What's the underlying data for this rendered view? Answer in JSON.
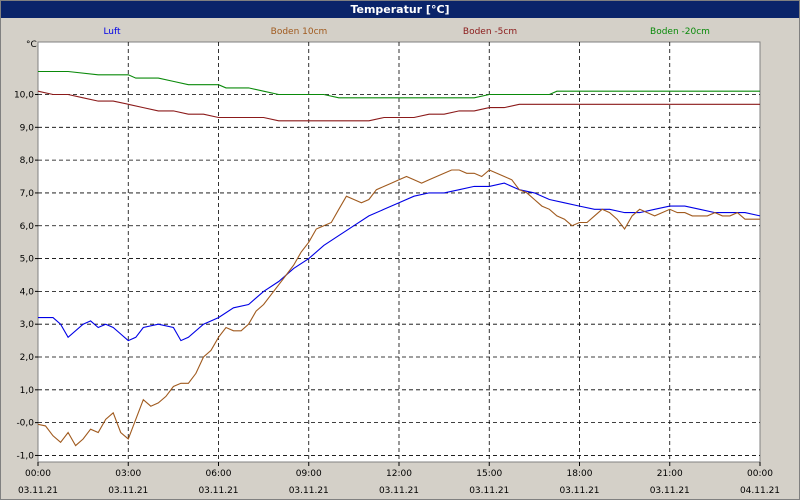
{
  "window": {
    "title": "Temperatur [°C]"
  },
  "chart_data": {
    "type": "line",
    "title": "Temperatur [°C]",
    "ylabel": "°C",
    "xlabel": "",
    "ylim": [
      -1.2,
      11.6
    ],
    "grid": true,
    "legend_position": "top",
    "colors": {
      "Luft": "#0000e6",
      "Boden 10cm": "#a05a1e",
      "Boden -5cm": "#8b1a1a",
      "Boden -20cm": "#0a8a0a"
    },
    "y_ticks": [
      "-1,0",
      "-0,0",
      "1,0",
      "2,0",
      "3,0",
      "4,0",
      "5,0",
      "6,0",
      "7,0",
      "8,0",
      "9,0",
      "10,0"
    ],
    "y_tick_values": [
      -1,
      0,
      1,
      2,
      3,
      4,
      5,
      6,
      7,
      8,
      9,
      10
    ],
    "x_ticks": [
      {
        "time": "00:00",
        "date": "03.11.21"
      },
      {
        "time": "03:00",
        "date": "03.11.21"
      },
      {
        "time": "06:00",
        "date": "03.11.21"
      },
      {
        "time": "09:00",
        "date": "03.11.21"
      },
      {
        "time": "12:00",
        "date": "03.11.21"
      },
      {
        "time": "15:00",
        "date": "03.11.21"
      },
      {
        "time": "18:00",
        "date": "03.11.21"
      },
      {
        "time": "21:00",
        "date": "03.11.21"
      },
      {
        "time": "00:00",
        "date": "04.11.21"
      }
    ],
    "series": [
      {
        "name": "Luft",
        "x": [
          0,
          0.5,
          0.75,
          1,
          1.5,
          1.75,
          2,
          2.25,
          2.5,
          2.75,
          3,
          3.25,
          3.5,
          4,
          4.5,
          4.75,
          5,
          5.5,
          6,
          6.5,
          7,
          7.5,
          8,
          8.5,
          9,
          9.5,
          10,
          10.5,
          11,
          11.5,
          12,
          12.5,
          13,
          13.5,
          14,
          14.5,
          15,
          15.5,
          16,
          16.5,
          17,
          17.5,
          18,
          18.5,
          19,
          19.5,
          20,
          20.5,
          21,
          21.5,
          22,
          22.5,
          23,
          23.5,
          24
        ],
        "y": [
          3.2,
          3.2,
          3.0,
          2.6,
          3.0,
          3.1,
          2.9,
          3.0,
          2.9,
          2.7,
          2.5,
          2.6,
          2.9,
          3.0,
          2.9,
          2.5,
          2.6,
          3.0,
          3.2,
          3.5,
          3.6,
          4.0,
          4.3,
          4.7,
          5.0,
          5.4,
          5.7,
          6.0,
          6.3,
          6.5,
          6.7,
          6.9,
          7.0,
          7.0,
          7.1,
          7.2,
          7.2,
          7.3,
          7.1,
          7.0,
          6.8,
          6.7,
          6.6,
          6.5,
          6.5,
          6.4,
          6.4,
          6.5,
          6.6,
          6.6,
          6.5,
          6.4,
          6.4,
          6.4,
          6.3
        ]
      },
      {
        "name": "Boden 10cm",
        "x": [
          0,
          0.25,
          0.5,
          0.75,
          1,
          1.25,
          1.5,
          1.75,
          2,
          2.25,
          2.5,
          2.75,
          3,
          3.25,
          3.5,
          3.75,
          4,
          4.25,
          4.5,
          4.75,
          5,
          5.25,
          5.5,
          5.75,
          6,
          6.25,
          6.5,
          6.75,
          7,
          7.25,
          7.5,
          7.75,
          8,
          8.25,
          8.5,
          8.75,
          9,
          9.25,
          9.5,
          9.75,
          10,
          10.25,
          10.5,
          10.75,
          11,
          11.25,
          11.5,
          11.75,
          12,
          12.25,
          12.5,
          12.75,
          13,
          13.25,
          13.5,
          13.75,
          14,
          14.25,
          14.5,
          14.75,
          15,
          15.25,
          15.5,
          15.75,
          16,
          16.25,
          16.5,
          16.75,
          17,
          17.25,
          17.5,
          17.75,
          18,
          18.25,
          18.5,
          18.75,
          19,
          19.25,
          19.5,
          19.75,
          20,
          20.25,
          20.5,
          20.75,
          21,
          21.25,
          21.5,
          21.75,
          22,
          22.25,
          22.5,
          22.75,
          23,
          23.25,
          23.5,
          23.75,
          24
        ],
        "y": [
          -0.05,
          -0.1,
          -0.4,
          -0.6,
          -0.3,
          -0.7,
          -0.5,
          -0.2,
          -0.3,
          0.1,
          0.3,
          -0.3,
          -0.5,
          0.1,
          0.7,
          0.5,
          0.6,
          0.8,
          1.1,
          1.2,
          1.2,
          1.5,
          2.0,
          2.2,
          2.6,
          2.9,
          2.8,
          2.8,
          3.0,
          3.4,
          3.6,
          3.9,
          4.2,
          4.5,
          4.8,
          5.2,
          5.5,
          5.9,
          6.0,
          6.1,
          6.5,
          6.9,
          6.8,
          6.7,
          6.8,
          7.1,
          7.2,
          7.3,
          7.4,
          7.5,
          7.4,
          7.3,
          7.4,
          7.5,
          7.6,
          7.7,
          7.7,
          7.6,
          7.6,
          7.5,
          7.7,
          7.6,
          7.5,
          7.4,
          7.1,
          7.0,
          6.8,
          6.6,
          6.5,
          6.3,
          6.2,
          6.0,
          6.1,
          6.1,
          6.3,
          6.5,
          6.4,
          6.2,
          5.9,
          6.3,
          6.5,
          6.4,
          6.3,
          6.4,
          6.5,
          6.4,
          6.4,
          6.3,
          6.3,
          6.3,
          6.4,
          6.3,
          6.3,
          6.4,
          6.2,
          6.2,
          6.2
        ]
      },
      {
        "name": "Boden -5cm",
        "x": [
          0,
          0.5,
          1,
          1.5,
          2,
          2.5,
          3,
          3.5,
          4,
          4.5,
          5,
          5.5,
          6,
          6.5,
          7,
          7.5,
          8,
          9,
          10,
          11,
          11.5,
          12,
          12.5,
          13,
          13.5,
          14,
          14.5,
          15,
          15.5,
          16,
          17,
          18,
          19,
          20,
          21,
          22,
          23,
          24
        ],
        "y": [
          10.1,
          10.0,
          10.0,
          9.9,
          9.8,
          9.8,
          9.7,
          9.6,
          9.5,
          9.5,
          9.4,
          9.4,
          9.3,
          9.3,
          9.3,
          9.3,
          9.2,
          9.2,
          9.2,
          9.2,
          9.3,
          9.3,
          9.3,
          9.4,
          9.4,
          9.5,
          9.5,
          9.6,
          9.6,
          9.7,
          9.7,
          9.7,
          9.7,
          9.7,
          9.7,
          9.7,
          9.7,
          9.7
        ]
      },
      {
        "name": "Boden -20cm",
        "x": [
          0,
          1,
          2,
          3,
          3.25,
          4,
          4.5,
          5,
          6,
          6.25,
          7,
          7.5,
          8,
          9,
          9.5,
          10,
          11,
          12,
          13,
          14,
          14.5,
          15,
          15.5,
          16,
          17,
          17.25,
          18,
          19,
          20,
          21,
          22,
          23,
          24
        ],
        "y": [
          10.7,
          10.7,
          10.6,
          10.6,
          10.5,
          10.5,
          10.4,
          10.3,
          10.3,
          10.2,
          10.2,
          10.1,
          10.0,
          10.0,
          10.0,
          9.9,
          9.9,
          9.9,
          9.9,
          9.9,
          9.9,
          10.0,
          10.0,
          10.0,
          10.0,
          10.1,
          10.1,
          10.1,
          10.1,
          10.1,
          10.1,
          10.1,
          10.1
        ]
      }
    ]
  }
}
